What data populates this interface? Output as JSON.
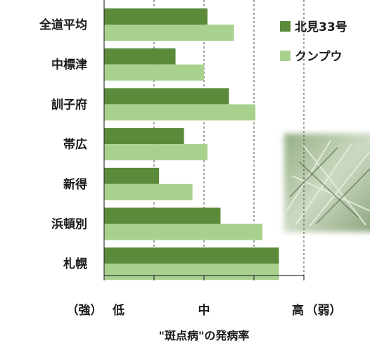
{
  "chart_data": {
    "type": "bar",
    "orientation": "horizontal",
    "categories": [
      "全道平均",
      "中標津",
      "訓子府",
      "帯広",
      "新得",
      "浜頓別",
      "札幌"
    ],
    "series": [
      {
        "name": "北見33号",
        "color": "#5a8a3a",
        "values": [
          2.07,
          1.43,
          2.5,
          1.6,
          1.1,
          2.33,
          3.5
        ]
      },
      {
        "name": "クンプウ",
        "color": "#a9d18e",
        "values": [
          2.6,
          2.0,
          3.03,
          2.07,
          1.77,
          3.17,
          3.5
        ]
      }
    ],
    "xlim": [
      0,
      4
    ],
    "grid": "vertical-dashed",
    "legend": "top-right",
    "x_tick_labels": [
      {
        "value": 0,
        "text": "低"
      },
      {
        "value": 2,
        "text": "中"
      },
      {
        "value": 4,
        "text": "高"
      }
    ],
    "x_side_labels": {
      "left": "（強）",
      "right": "（弱）"
    },
    "xlabel": "\"斑点病\"の発病率"
  }
}
